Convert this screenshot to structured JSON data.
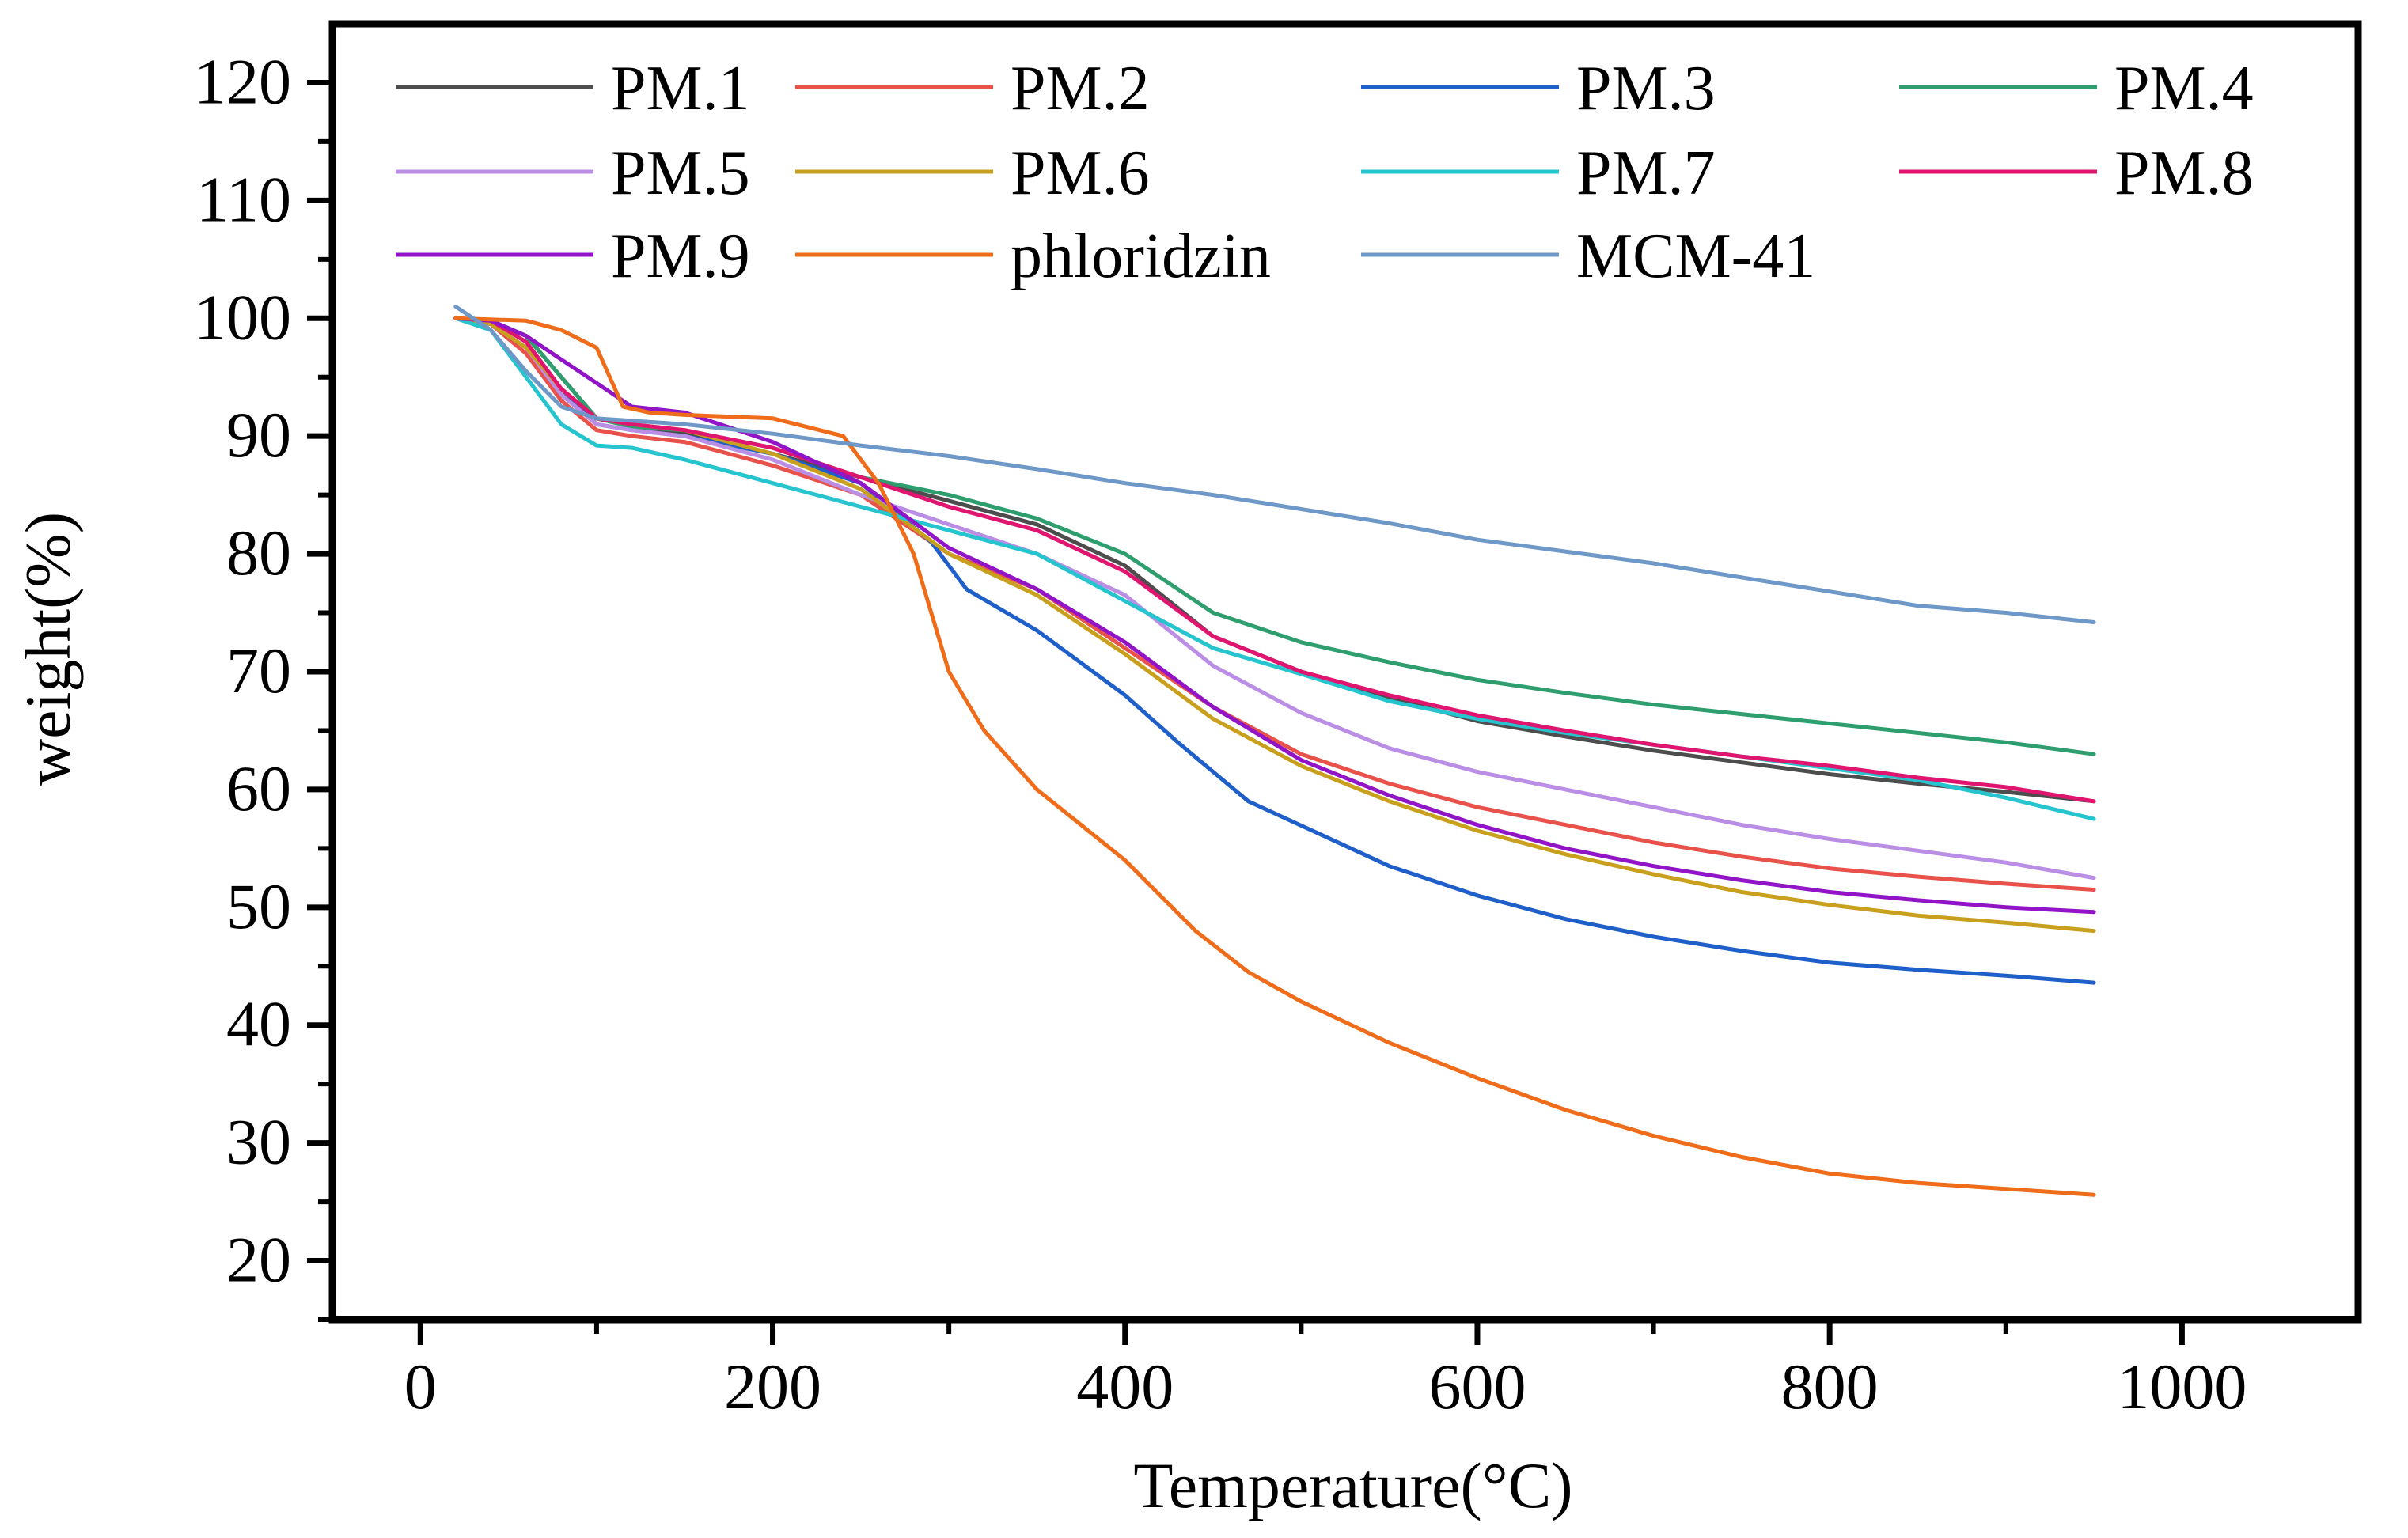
{
  "chart_data": {
    "type": "line",
    "title": "",
    "xlabel": "Temperature(°C)",
    "ylabel": "weight(%)",
    "xlim": [
      -50,
      1100
    ],
    "ylim": [
      15,
      125
    ],
    "xticks": [
      0,
      200,
      400,
      600,
      800,
      1000
    ],
    "xtick_labels": [
      "0",
      "200",
      "400",
      "600",
      "800",
      "1000"
    ],
    "yticks": [
      20,
      30,
      40,
      50,
      60,
      70,
      80,
      90,
      100,
      110,
      120
    ],
    "ytick_labels": [
      "20",
      "30",
      "40",
      "50",
      "60",
      "70",
      "80",
      "90",
      "100",
      "110",
      "120"
    ],
    "legend_position": "top",
    "series": [
      {
        "name": "PM.1",
        "color": "#4d4d4d",
        "points": [
          [
            20,
            100
          ],
          [
            40,
            99.8
          ],
          [
            60,
            98.5
          ],
          [
            80,
            95
          ],
          [
            100,
            91.5
          ],
          [
            120,
            90.8
          ],
          [
            150,
            90.3
          ],
          [
            200,
            88.5
          ],
          [
            250,
            86.5
          ],
          [
            300,
            84.5
          ],
          [
            350,
            82.5
          ],
          [
            400,
            79
          ],
          [
            450,
            73
          ],
          [
            500,
            70
          ],
          [
            550,
            67.8
          ],
          [
            600,
            65.8
          ],
          [
            650,
            64.5
          ],
          [
            700,
            63.3
          ],
          [
            750,
            62.3
          ],
          [
            800,
            61.3
          ],
          [
            850,
            60.5
          ],
          [
            900,
            59.8
          ],
          [
            950,
            59
          ]
        ]
      },
      {
        "name": "PM.2",
        "color": "#e8524a",
        "points": [
          [
            20,
            100
          ],
          [
            40,
            99.5
          ],
          [
            60,
            97
          ],
          [
            80,
            93
          ],
          [
            100,
            90.5
          ],
          [
            120,
            90
          ],
          [
            150,
            89.5
          ],
          [
            200,
            87.5
          ],
          [
            250,
            85
          ],
          [
            300,
            80
          ],
          [
            350,
            77
          ],
          [
            400,
            72
          ],
          [
            450,
            67
          ],
          [
            500,
            63
          ],
          [
            550,
            60.5
          ],
          [
            600,
            58.5
          ],
          [
            650,
            57
          ],
          [
            700,
            55.5
          ],
          [
            750,
            54.3
          ],
          [
            800,
            53.3
          ],
          [
            850,
            52.6
          ],
          [
            900,
            52
          ],
          [
            950,
            51.5
          ]
        ]
      },
      {
        "name": "PM.3",
        "color": "#1f5fc9",
        "points": [
          [
            20,
            100
          ],
          [
            40,
            99.5
          ],
          [
            60,
            97.5
          ],
          [
            80,
            94
          ],
          [
            100,
            91
          ],
          [
            120,
            90.5
          ],
          [
            150,
            90
          ],
          [
            200,
            88.5
          ],
          [
            250,
            86
          ],
          [
            290,
            81
          ],
          [
            310,
            77
          ],
          [
            350,
            73.5
          ],
          [
            400,
            68
          ],
          [
            430,
            64
          ],
          [
            470,
            59
          ],
          [
            550,
            53.5
          ],
          [
            600,
            51
          ],
          [
            650,
            49
          ],
          [
            700,
            47.5
          ],
          [
            750,
            46.3
          ],
          [
            800,
            45.3
          ],
          [
            850,
            44.7
          ],
          [
            900,
            44.2
          ],
          [
            950,
            43.6
          ]
        ]
      },
      {
        "name": "PM.4",
        "color": "#2e9e6f",
        "points": [
          [
            20,
            100
          ],
          [
            40,
            99.8
          ],
          [
            60,
            98.5
          ],
          [
            80,
            95
          ],
          [
            100,
            91.5
          ],
          [
            120,
            90.8
          ],
          [
            150,
            90.5
          ],
          [
            200,
            89
          ],
          [
            250,
            86.5
          ],
          [
            300,
            85
          ],
          [
            350,
            83
          ],
          [
            400,
            80
          ],
          [
            450,
            75
          ],
          [
            500,
            72.5
          ],
          [
            550,
            70.8
          ],
          [
            600,
            69.3
          ],
          [
            650,
            68.2
          ],
          [
            700,
            67.2
          ],
          [
            750,
            66.4
          ],
          [
            800,
            65.6
          ],
          [
            850,
            64.8
          ],
          [
            900,
            64
          ],
          [
            950,
            63
          ]
        ]
      },
      {
        "name": "PM.5",
        "color": "#bb8ee6",
        "points": [
          [
            20,
            100
          ],
          [
            40,
            99.5
          ],
          [
            60,
            97.5
          ],
          [
            80,
            93.5
          ],
          [
            100,
            91
          ],
          [
            120,
            90.5
          ],
          [
            150,
            90
          ],
          [
            200,
            88
          ],
          [
            250,
            85
          ],
          [
            300,
            82.5
          ],
          [
            350,
            80
          ],
          [
            400,
            76.5
          ],
          [
            450,
            70.5
          ],
          [
            500,
            66.5
          ],
          [
            550,
            63.5
          ],
          [
            600,
            61.5
          ],
          [
            650,
            60
          ],
          [
            700,
            58.5
          ],
          [
            750,
            57
          ],
          [
            800,
            55.8
          ],
          [
            850,
            54.8
          ],
          [
            900,
            53.8
          ],
          [
            950,
            52.5
          ]
        ]
      },
      {
        "name": "PM.6",
        "color": "#c9a01e",
        "points": [
          [
            20,
            100
          ],
          [
            40,
            99.5
          ],
          [
            60,
            97.5
          ],
          [
            80,
            94
          ],
          [
            100,
            91.5
          ],
          [
            120,
            91
          ],
          [
            150,
            90.5
          ],
          [
            200,
            88.5
          ],
          [
            250,
            85.5
          ],
          [
            300,
            80
          ],
          [
            350,
            76.5
          ],
          [
            400,
            71.5
          ],
          [
            450,
            66
          ],
          [
            500,
            62
          ],
          [
            550,
            59
          ],
          [
            600,
            56.5
          ],
          [
            650,
            54.5
          ],
          [
            700,
            52.8
          ],
          [
            750,
            51.3
          ],
          [
            800,
            50.2
          ],
          [
            850,
            49.3
          ],
          [
            900,
            48.7
          ],
          [
            950,
            48
          ]
        ]
      },
      {
        "name": "PM.7",
        "color": "#26c4cf",
        "points": [
          [
            20,
            100
          ],
          [
            40,
            99
          ],
          [
            60,
            95
          ],
          [
            80,
            91
          ],
          [
            100,
            89.2
          ],
          [
            120,
            89
          ],
          [
            150,
            88
          ],
          [
            200,
            86
          ],
          [
            250,
            84
          ],
          [
            300,
            82
          ],
          [
            350,
            80
          ],
          [
            400,
            76
          ],
          [
            450,
            72
          ],
          [
            500,
            69.8
          ],
          [
            550,
            67.5
          ],
          [
            600,
            66
          ],
          [
            650,
            64.8
          ],
          [
            700,
            63.8
          ],
          [
            750,
            62.8
          ],
          [
            800,
            61.8
          ],
          [
            850,
            60.8
          ],
          [
            900,
            59.3
          ],
          [
            950,
            57.5
          ]
        ]
      },
      {
        "name": "PM.8",
        "color": "#e0156f",
        "points": [
          [
            20,
            100
          ],
          [
            40,
            99.8
          ],
          [
            60,
            98
          ],
          [
            80,
            94
          ],
          [
            100,
            91.5
          ],
          [
            120,
            91
          ],
          [
            150,
            90.5
          ],
          [
            200,
            89
          ],
          [
            250,
            86.5
          ],
          [
            300,
            84
          ],
          [
            350,
            82
          ],
          [
            400,
            78.5
          ],
          [
            450,
            73
          ],
          [
            500,
            70
          ],
          [
            550,
            68
          ],
          [
            600,
            66.3
          ],
          [
            650,
            65
          ],
          [
            700,
            63.8
          ],
          [
            750,
            62.8
          ],
          [
            800,
            62
          ],
          [
            850,
            61
          ],
          [
            900,
            60.2
          ],
          [
            950,
            59
          ]
        ]
      },
      {
        "name": "PM.9",
        "color": "#9214c7",
        "points": [
          [
            20,
            100
          ],
          [
            40,
            99.8
          ],
          [
            60,
            98.5
          ],
          [
            80,
            96.5
          ],
          [
            100,
            94.5
          ],
          [
            120,
            92.5
          ],
          [
            150,
            92
          ],
          [
            200,
            89.5
          ],
          [
            250,
            86
          ],
          [
            300,
            80.5
          ],
          [
            350,
            77
          ],
          [
            400,
            72.5
          ],
          [
            450,
            67
          ],
          [
            500,
            62.5
          ],
          [
            550,
            59.5
          ],
          [
            600,
            57
          ],
          [
            650,
            55
          ],
          [
            700,
            53.5
          ],
          [
            750,
            52.3
          ],
          [
            800,
            51.3
          ],
          [
            850,
            50.6
          ],
          [
            900,
            50
          ],
          [
            950,
            49.6
          ]
        ]
      },
      {
        "name": "phloridzin",
        "color": "#ee6c1a",
        "points": [
          [
            20,
            100
          ],
          [
            60,
            99.8
          ],
          [
            80,
            99
          ],
          [
            100,
            97.5
          ],
          [
            115,
            92.5
          ],
          [
            130,
            92
          ],
          [
            150,
            91.8
          ],
          [
            200,
            91.5
          ],
          [
            240,
            90
          ],
          [
            260,
            86
          ],
          [
            280,
            80
          ],
          [
            300,
            70
          ],
          [
            320,
            65
          ],
          [
            350,
            60
          ],
          [
            400,
            54
          ],
          [
            440,
            48
          ],
          [
            470,
            44.5
          ],
          [
            500,
            42
          ],
          [
            550,
            38.5
          ],
          [
            600,
            35.5
          ],
          [
            650,
            32.8
          ],
          [
            700,
            30.6
          ],
          [
            750,
            28.8
          ],
          [
            800,
            27.4
          ],
          [
            850,
            26.6
          ],
          [
            900,
            26.1
          ],
          [
            950,
            25.6
          ]
        ]
      },
      {
        "name": "MCM-41",
        "color": "#6d98c8",
        "points": [
          [
            20,
            101
          ],
          [
            40,
            99
          ],
          [
            60,
            95.5
          ],
          [
            80,
            92.5
          ],
          [
            100,
            91.5
          ],
          [
            150,
            91
          ],
          [
            200,
            90.2
          ],
          [
            250,
            89.2
          ],
          [
            300,
            88.3
          ],
          [
            350,
            87.2
          ],
          [
            400,
            86
          ],
          [
            450,
            85
          ],
          [
            500,
            83.8
          ],
          [
            550,
            82.6
          ],
          [
            600,
            81.2
          ],
          [
            650,
            80.2
          ],
          [
            700,
            79.2
          ],
          [
            750,
            78
          ],
          [
            800,
            76.8
          ],
          [
            850,
            75.6
          ],
          [
            900,
            75
          ],
          [
            950,
            74.2
          ]
        ]
      }
    ]
  }
}
